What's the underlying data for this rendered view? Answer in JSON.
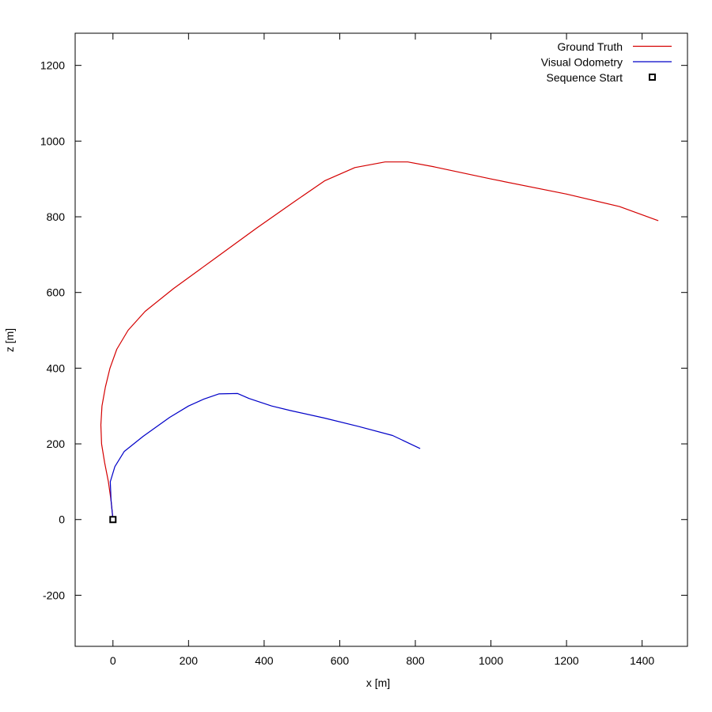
{
  "chart_data": {
    "type": "line",
    "title": "",
    "xlabel": "x [m]",
    "ylabel": "z [m]",
    "xlim": [
      -100,
      1520
    ],
    "ylim": [
      -335,
      1285
    ],
    "xticks": [
      0,
      200,
      400,
      600,
      800,
      1000,
      1200,
      1400
    ],
    "yticks": [
      -200,
      0,
      200,
      400,
      600,
      800,
      1000,
      1200
    ],
    "xtick_labels": [
      "0",
      "200",
      "400",
      "600",
      "800",
      "1000",
      "1200",
      "1400"
    ],
    "ytick_labels": [
      "-200",
      "0",
      "200",
      "400",
      "600",
      "800",
      "1000",
      "1200"
    ],
    "grid": false,
    "legend_position": "top-right",
    "series": [
      {
        "name": "Ground Truth",
        "color": "#d40000",
        "style": "line",
        "points": [
          [
            0,
            0
          ],
          [
            -5,
            50
          ],
          [
            -12,
            100
          ],
          [
            -22,
            150
          ],
          [
            -30,
            200
          ],
          [
            -32,
            250
          ],
          [
            -29,
            300
          ],
          [
            -20,
            350
          ],
          [
            -8,
            400
          ],
          [
            10,
            450
          ],
          [
            40,
            500
          ],
          [
            85,
            550
          ],
          [
            160,
            610
          ],
          [
            270,
            690
          ],
          [
            380,
            770
          ],
          [
            480,
            840
          ],
          [
            560,
            895
          ],
          [
            640,
            930
          ],
          [
            720,
            945
          ],
          [
            780,
            945
          ],
          [
            850,
            932
          ],
          [
            1000,
            900
          ],
          [
            1200,
            860
          ],
          [
            1340,
            827
          ],
          [
            1442,
            790
          ]
        ]
      },
      {
        "name": "Visual Odometry",
        "color": "#0000c8",
        "style": "line",
        "points": [
          [
            0,
            0
          ],
          [
            -5,
            50
          ],
          [
            -7,
            100
          ],
          [
            5,
            140
          ],
          [
            30,
            180
          ],
          [
            80,
            220
          ],
          [
            150,
            270
          ],
          [
            200,
            300
          ],
          [
            240,
            318
          ],
          [
            280,
            332
          ],
          [
            330,
            333
          ],
          [
            360,
            320
          ],
          [
            420,
            300
          ],
          [
            470,
            288
          ],
          [
            560,
            268
          ],
          [
            650,
            246
          ],
          [
            740,
            222
          ],
          [
            812,
            188
          ]
        ]
      },
      {
        "name": "Sequence Start",
        "style": "marker",
        "points": [
          [
            0,
            0
          ]
        ]
      }
    ]
  }
}
